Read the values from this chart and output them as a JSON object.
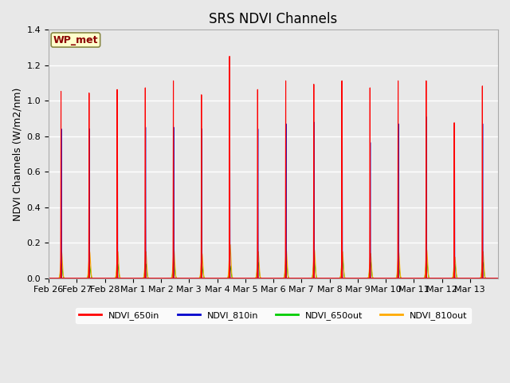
{
  "title": "SRS NDVI Channels",
  "ylabel": "NDVI Channels (W/m2/nm)",
  "xlabel": "",
  "ylim": [
    0,
    1.4
  ],
  "background_color": "#e8e8e8",
  "plot_bg_color": "#e8e8e8",
  "annotation_text": "WP_met",
  "annotation_bg": "#ffffcc",
  "annotation_border": "#8b0000",
  "legend_labels": [
    "NDVI_650in",
    "NDVI_810in",
    "NDVI_650out",
    "NDVI_810out"
  ],
  "legend_colors": [
    "#ff0000",
    "#0000cc",
    "#00cc00",
    "#ffaa00"
  ],
  "x_tick_labels": [
    "Feb 26",
    "Feb 27",
    "Feb 28",
    "Mar 1",
    "Mar 2",
    "Mar 3",
    "Mar 4",
    "Mar 5",
    "Mar 6",
    "Mar 7",
    "Mar 8",
    "Mar 9",
    "Mar 10",
    "Mar 11",
    "Mar 12",
    "Mar 13"
  ],
  "num_days": 16,
  "day_peaks_650in": [
    1.07,
    1.06,
    1.08,
    1.09,
    1.13,
    1.05,
    1.27,
    1.08,
    1.13,
    1.11,
    1.13,
    1.09,
    1.13,
    1.13,
    0.89,
    1.1
  ],
  "day_peaks_810in": [
    0.88,
    0.88,
    0.88,
    0.89,
    0.89,
    0.88,
    0.87,
    0.88,
    0.91,
    0.92,
    0.93,
    0.8,
    0.91,
    0.95,
    0.76,
    0.91
  ],
  "day_peaks_650out": [
    0.08,
    0.07,
    0.08,
    0.08,
    0.09,
    0.07,
    0.07,
    0.09,
    0.1,
    0.1,
    0.11,
    0.09,
    0.07,
    0.1,
    0.08,
    0.09
  ],
  "day_peaks_810out": [
    0.15,
    0.15,
    0.15,
    0.15,
    0.16,
    0.14,
    0.19,
    0.15,
    0.16,
    0.16,
    0.15,
    0.14,
    0.15,
    0.16,
    0.12,
    0.15
  ],
  "title_fontsize": 12,
  "label_fontsize": 9,
  "tick_fontsize": 8
}
